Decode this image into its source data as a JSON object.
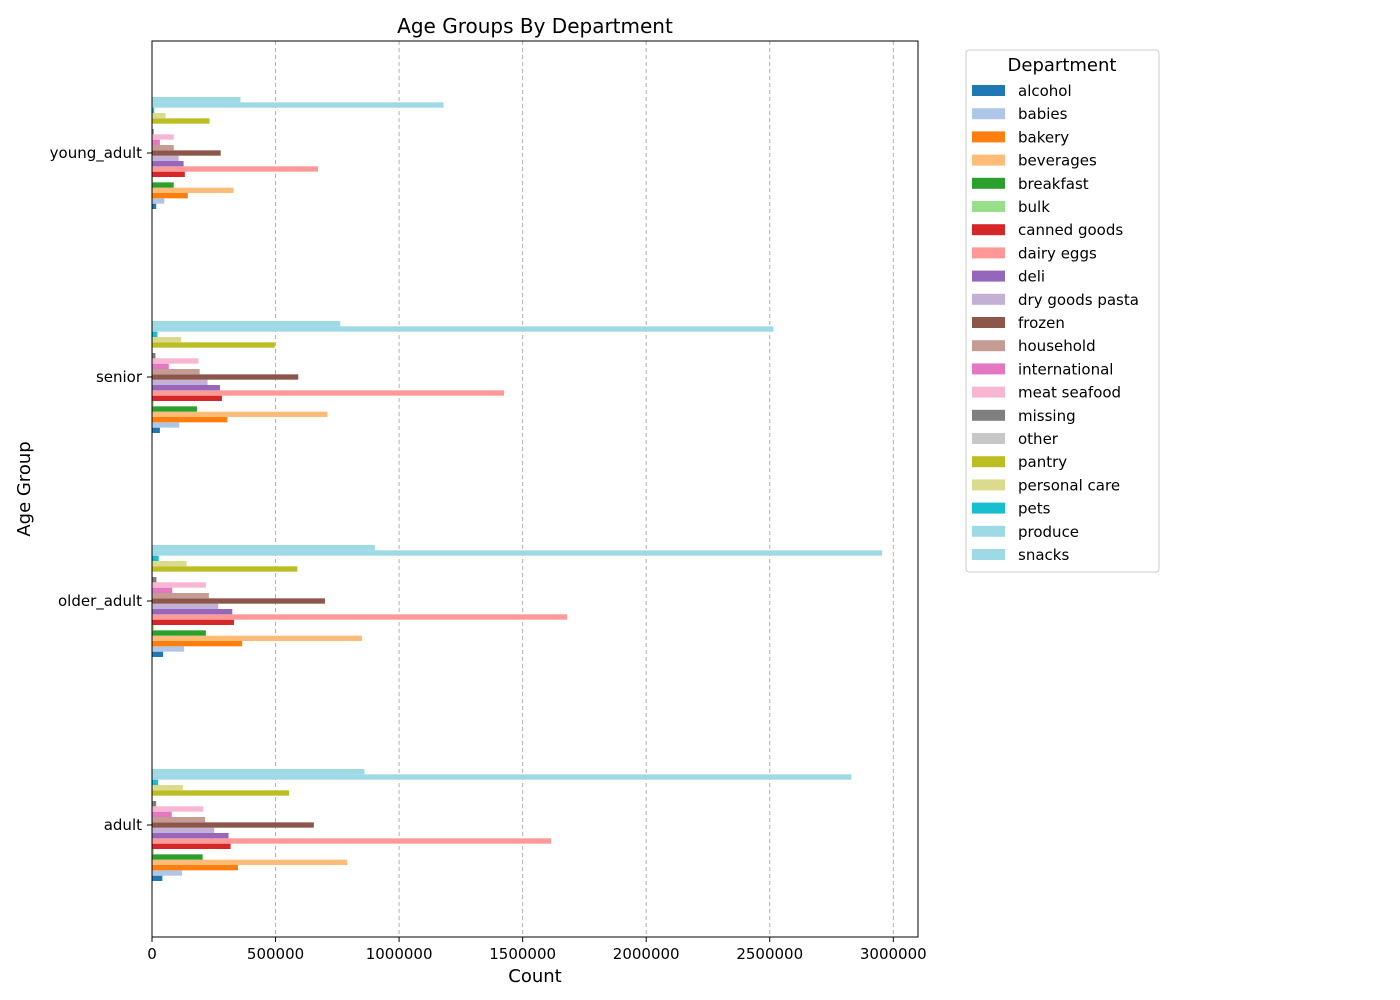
{
  "chart_data": {
    "type": "bar",
    "orientation": "horizontal",
    "title": "Age Groups By Department",
    "xlabel": "Count",
    "ylabel": "Age Group",
    "xlim": [
      0,
      3100000
    ],
    "xticks": [
      0,
      500000,
      1000000,
      1500000,
      2000000,
      2500000,
      3000000
    ],
    "xtick_labels": [
      "0",
      "500000",
      "1000000",
      "1500000",
      "2000000",
      "2500000",
      "3000000"
    ],
    "grid": "x-dashed",
    "categories": [
      "adult",
      "older_adult",
      "senior",
      "young_adult"
    ],
    "legend_title": "Department",
    "legend_position": "outside-right-top",
    "series": [
      {
        "name": "alcohol",
        "color": "#1f77b4",
        "values": [
          42000,
          45000,
          32000,
          17000
        ]
      },
      {
        "name": "babies",
        "color": "#aec7e8",
        "values": [
          122000,
          130000,
          110000,
          50000
        ]
      },
      {
        "name": "bakery",
        "color": "#ff7f0e",
        "values": [
          348000,
          365000,
          305000,
          145000
        ]
      },
      {
        "name": "beverages",
        "color": "#ffbb78",
        "values": [
          790000,
          850000,
          710000,
          330000
        ]
      },
      {
        "name": "breakfast",
        "color": "#2ca02c",
        "values": [
          205000,
          218000,
          182000,
          88000
        ]
      },
      {
        "name": "bulk",
        "color": "#98df8a",
        "values": [
          8000,
          9000,
          7000,
          3500
        ]
      },
      {
        "name": "canned goods",
        "color": "#d62728",
        "values": [
          318000,
          332000,
          283000,
          133000
        ]
      },
      {
        "name": "dairy eggs",
        "color": "#ff9896",
        "values": [
          1615000,
          1680000,
          1425000,
          672000
        ]
      },
      {
        "name": "deli",
        "color": "#9467bd",
        "values": [
          310000,
          325000,
          275000,
          128000
        ]
      },
      {
        "name": "dry goods pasta",
        "color": "#c5b0d5",
        "values": [
          252000,
          268000,
          225000,
          108000
        ]
      },
      {
        "name": "frozen",
        "color": "#8c564b",
        "values": [
          655000,
          700000,
          592000,
          278000
        ]
      },
      {
        "name": "household",
        "color": "#c49c94",
        "values": [
          215000,
          230000,
          193000,
          88000
        ]
      },
      {
        "name": "international",
        "color": "#e377c2",
        "values": [
          80000,
          82000,
          68000,
          32000
        ]
      },
      {
        "name": "meat seafood",
        "color": "#f7b6d2",
        "values": [
          208000,
          218000,
          188000,
          88000
        ]
      },
      {
        "name": "missing",
        "color": "#7f7f7f",
        "values": [
          17000,
          18000,
          14000,
          7000
        ]
      },
      {
        "name": "other",
        "color": "#c7c7c7",
        "values": [
          3000,
          3000,
          3000,
          2000
        ]
      },
      {
        "name": "pantry",
        "color": "#bcbd22",
        "values": [
          555000,
          588000,
          497000,
          233000
        ]
      },
      {
        "name": "personal care",
        "color": "#dbdb8d",
        "values": [
          125000,
          140000,
          118000,
          55000
        ]
      },
      {
        "name": "pets",
        "color": "#17becf",
        "values": [
          25000,
          27000,
          22000,
          9000
        ]
      },
      {
        "name": "produce",
        "color": "#9edae5",
        "values": [
          2830000,
          2955000,
          2515000,
          1180000
        ]
      },
      {
        "name": "snacks",
        "color": "#9edae5",
        "values": [
          860000,
          902000,
          762000,
          358000
        ]
      }
    ]
  }
}
